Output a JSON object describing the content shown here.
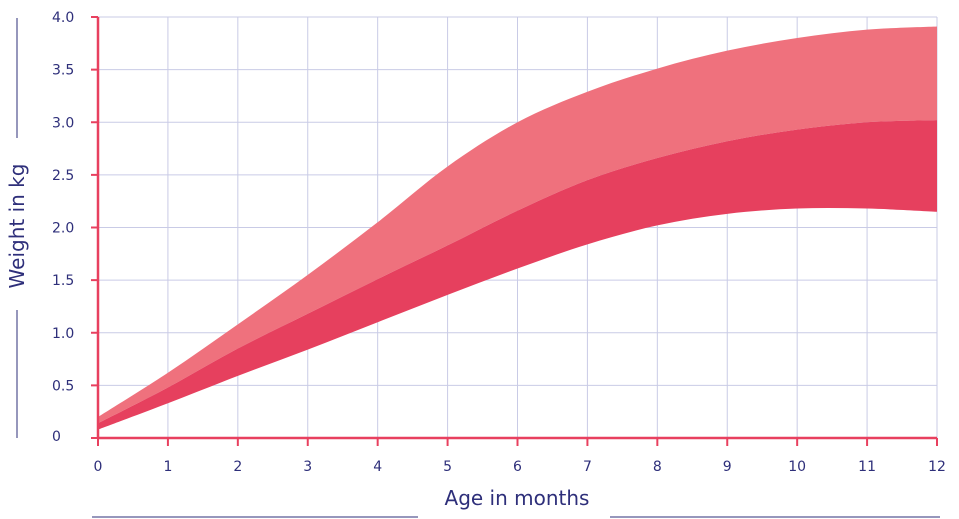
{
  "chart_data": {
    "type": "area",
    "title": "",
    "xlabel": "Age in months",
    "ylabel": "Weight in kg",
    "xlim": [
      0,
      12
    ],
    "ylim": [
      0,
      4.0
    ],
    "x_ticks": [
      "0",
      "1",
      "2",
      "3",
      "4",
      "5",
      "6",
      "7",
      "8",
      "9",
      "10",
      "11",
      "12"
    ],
    "y_ticks": [
      "0",
      "0.5",
      "1.0",
      "1.5",
      "2.0",
      "2.5",
      "3.0",
      "3.5",
      "4.0"
    ],
    "grid": true,
    "x": [
      0,
      1,
      2,
      3,
      4,
      5,
      6,
      7,
      8,
      9,
      10,
      11,
      12
    ],
    "series": [
      {
        "values": [
          0.2,
          0.62,
          1.08,
          1.55,
          2.05,
          2.58,
          3.0,
          3.29,
          3.51,
          3.68,
          3.8,
          3.88,
          3.91
        ]
      },
      {
        "values": [
          0.14,
          0.48,
          0.85,
          1.18,
          1.51,
          1.83,
          2.16,
          2.45,
          2.66,
          2.82,
          2.93,
          3.0,
          3.02
        ]
      },
      {
        "values": [
          0.08,
          0.33,
          0.59,
          0.84,
          1.1,
          1.36,
          1.61,
          1.84,
          2.02,
          2.13,
          2.18,
          2.18,
          2.15
        ]
      }
    ],
    "colors": {
      "upper_band": "#ef717d",
      "lower_band": "#e6405e",
      "axis": "#e8405f",
      "grid": "#c9cbe6",
      "text": "#2e2f7a"
    }
  }
}
